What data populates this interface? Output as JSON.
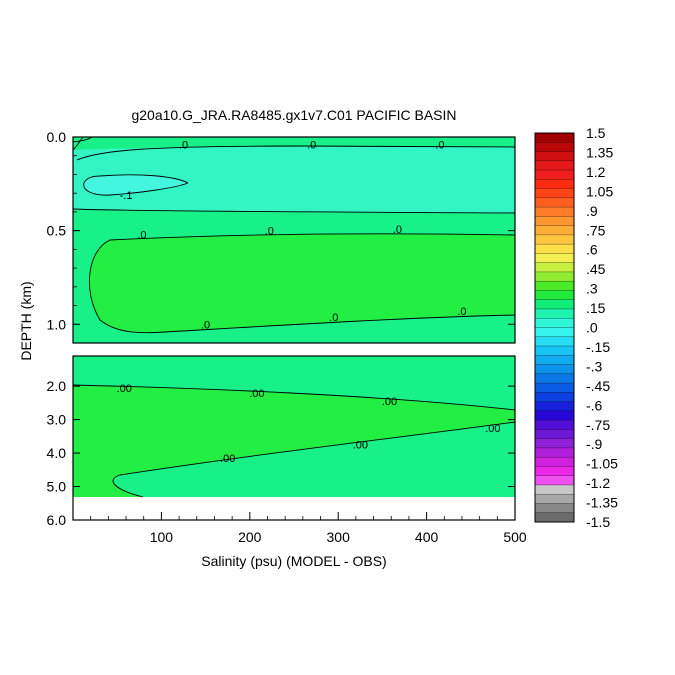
{
  "chart_data": {
    "type": "heatmap",
    "title": "g20a10.G_JRA.RA8485.gx1v7.C01 PACIFIC BASIN",
    "xlabel": "Salinity (psu) (MODEL - OBS)",
    "ylabel": "DEPTH (km)",
    "xlim": [
      0,
      500
    ],
    "x_ticks": [
      "100",
      "200",
      "300",
      "400",
      "500"
    ],
    "upper_panel": {
      "ylim": [
        0.0,
        1.1
      ],
      "y_ticks": [
        "0.0",
        "0.5",
        "1.0"
      ],
      "contour_labels": [
        {
          "text": ".0",
          "x": 125,
          "y": 0.04
        },
        {
          "text": ".0",
          "x": 270,
          "y": 0.04
        },
        {
          "text": ".0",
          "x": 415,
          "y": 0.04
        },
        {
          "text": "-.1",
          "x": 60,
          "y": 0.31
        },
        {
          "text": ".0",
          "x": 78,
          "y": 0.52
        },
        {
          "text": ".0",
          "x": 222,
          "y": 0.5
        },
        {
          "text": ".0",
          "x": 367,
          "y": 0.49
        },
        {
          "text": ".0",
          "x": 150,
          "y": 1.0
        },
        {
          "text": ".0",
          "x": 295,
          "y": 0.96
        },
        {
          "text": ".0",
          "x": 440,
          "y": 0.93
        }
      ]
    },
    "lower_panel": {
      "ylim": [
        1.1,
        6.0
      ],
      "y_ticks": [
        "2.0",
        "3.0",
        "4.0",
        "5.0",
        "6.0"
      ],
      "contour_labels": [
        {
          "text": ".00",
          "x": 58,
          "y": 2.05
        },
        {
          "text": ".00",
          "x": 208,
          "y": 2.2
        },
        {
          "text": ".00",
          "x": 358,
          "y": 2.45
        },
        {
          "text": ".00",
          "x": 175,
          "y": 4.15
        },
        {
          "text": ".00",
          "x": 325,
          "y": 3.75
        },
        {
          "text": ".00",
          "x": 475,
          "y": 3.25
        }
      ]
    },
    "colorbar": {
      "labels": [
        "1.5",
        "1.35",
        "1.2",
        "1.05",
        ".9",
        ".75",
        ".6",
        ".45",
        ".3",
        ".15",
        ".0",
        "-.15",
        "-.3",
        "-.45",
        "-.6",
        "-.75",
        "-.9",
        "-1.05",
        "-1.2",
        "-1.35",
        "-1.5"
      ],
      "colors": [
        "#a00000",
        "#ba0808",
        "#d01010",
        "#e41818",
        "#f01e1e",
        "#ff2a10",
        "#ff4418",
        "#ff6020",
        "#ff7c28",
        "#ff9630",
        "#ffae38",
        "#ffc640",
        "#ffde48",
        "#f0f050",
        "#c8f040",
        "#90ec30",
        "#4cea28",
        "#22ea3c",
        "#12ec78",
        "#20f2b0",
        "#30f6d8",
        "#38f4f0",
        "#28dcf4",
        "#18c4f4",
        "#10acf0",
        "#0c94ec",
        "#0a78e8",
        "#0a5ce4",
        "#0c40e0",
        "#1820dc",
        "#2808d8",
        "#5010d8",
        "#7018d8",
        "#9020d8",
        "#b020dc",
        "#d020e0",
        "#ec28e8",
        "#f050f0",
        "#c8c8c8",
        "#a8a8a8",
        "#888888",
        "#6c6c6c"
      ],
      "colors_note_levels": 42
    },
    "fill_colors": {
      "zero_to_pos": "#22ee44",
      "near_zero_neg": "#18f088",
      "neg_minus_015": "#33f5c4",
      "neg_minus_03": "#44f6e0",
      "missing": "#ffffff"
    }
  }
}
